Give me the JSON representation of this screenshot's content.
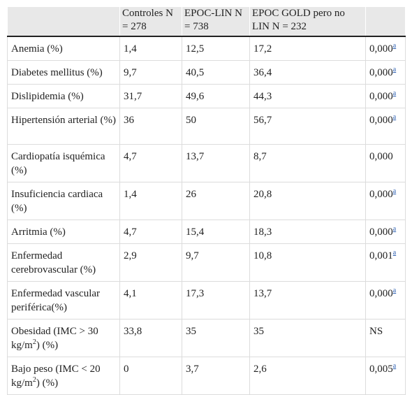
{
  "header": {
    "col0": "",
    "col1": "Controles N = 278",
    "col2": "EPOC-LIN N = 738",
    "col3": "EPOC GOLD pero no LIN N = 232",
    "col4": ""
  },
  "rows": [
    {
      "label": "Anemia (%)",
      "c1": "1,4",
      "c2": "12,5",
      "c3": "17,2",
      "p": "0,000",
      "mark": "a"
    },
    {
      "label": "Diabetes mellitus (%)",
      "c1": "9,7",
      "c2": "40,5",
      "c3": "36,4",
      "p": "0,000",
      "mark": "a"
    },
    {
      "label": "Dislipidemia (%)",
      "c1": "31,7",
      "c2": "49,6",
      "c3": "44,3",
      "p": "0,000",
      "mark": "a"
    },
    {
      "label": "Hipertensión arterial (%)",
      "c1": "36",
      "c2": "50",
      "c3": "56,7",
      "p": "0,000",
      "mark": "a"
    },
    {
      "label": "Cardiopatía isquémica (%)",
      "c1": "4,7",
      "c2": "13,7",
      "c3": "8,7",
      "p": "0,000",
      "mark": ""
    },
    {
      "label": "Insuficiencia cardiaca (%)",
      "c1": "1,4",
      "c2": "26",
      "c3": "20,8",
      "p": "0,000",
      "mark": "a"
    },
    {
      "label": "Arritmia (%)",
      "c1": "4,7",
      "c2": "15,4",
      "c3": "18,3",
      "p": "0,000",
      "mark": "a"
    },
    {
      "label": "Enfermedad cerebrovascular (%)",
      "c1": "2,9",
      "c2": "9,7",
      "c3": "10,8",
      "p": "0,001",
      "mark": "a"
    },
    {
      "label": "Enfermedad vascular periférica(%)",
      "c1": "4,1",
      "c2": "17,3",
      "c3": "13,7",
      "p": "0,000",
      "mark": "a"
    },
    {
      "label_pre": "Obesidad (IMC > 30 kg/m",
      "label_sup": "2",
      "label_post": ") (%)",
      "c1": "33,8",
      "c2": "35",
      "c3": "35",
      "p": "NS",
      "mark": ""
    },
    {
      "label_pre": "Bajo peso (IMC < 20 kg/m",
      "label_sup": "2",
      "label_post": ") (%)",
      "c1": "0",
      "c2": "3,7",
      "c3": "2,6",
      "p": "0,005",
      "mark": "a"
    }
  ]
}
